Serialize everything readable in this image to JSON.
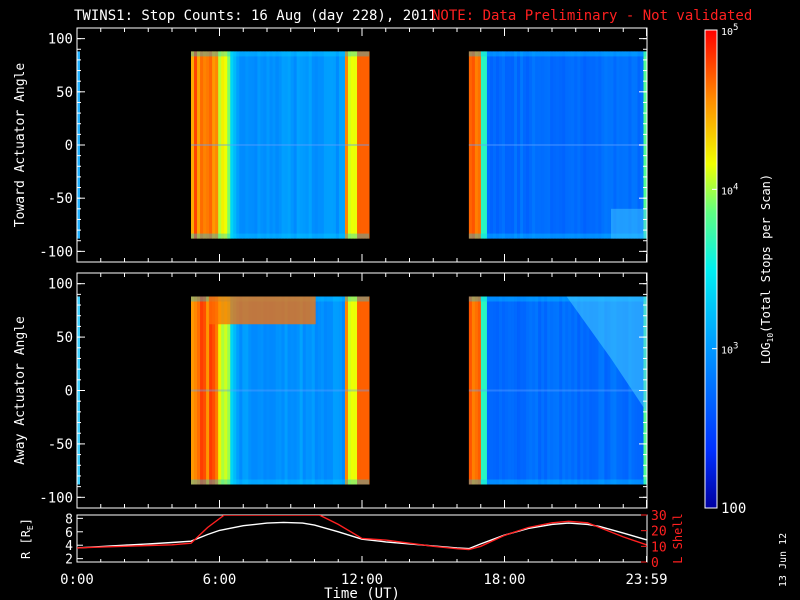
{
  "title": "TWINS1: Stop Counts: 16 Aug (day 228), 2011",
  "note": "NOTE: Data Preliminary - Not validated",
  "date_stamp": "13 Jun 12",
  "colors": {
    "background": "#000000",
    "note": "#ff2020",
    "axis": "#ffffff",
    "lshell": "#ff2020"
  },
  "chart_data": [
    {
      "type": "heatmap",
      "title": "",
      "ylabel": "Toward Actuator Angle",
      "ylim": [
        -110,
        110
      ],
      "yticks": [
        -100,
        -50,
        0,
        50,
        100
      ],
      "x_range_hours": [
        0,
        24
      ],
      "y_data_range": [
        -88,
        88
      ],
      "data_intervals_hours": [
        [
          4.8,
          12.3
        ],
        [
          16.5,
          23.98
        ]
      ],
      "scale": "log",
      "value_range": [
        100,
        100000
      ]
    },
    {
      "type": "heatmap",
      "title": "",
      "ylabel": "Away Actuator Angle",
      "ylim": [
        -110,
        110
      ],
      "yticks": [
        -100,
        -50,
        0,
        50,
        100
      ],
      "x_range_hours": [
        0,
        24
      ],
      "y_data_range": [
        -88,
        88
      ],
      "data_intervals_hours": [
        [
          4.8,
          12.3
        ],
        [
          16.5,
          23.98
        ]
      ],
      "scale": "log",
      "value_range": [
        100,
        100000
      ]
    },
    {
      "type": "line",
      "xlabel": "Time (UT)",
      "xticks": [
        "0:00",
        "6:00",
        "12:00",
        "18:00",
        "23:59"
      ],
      "xtick_hours": [
        0,
        6,
        12,
        18,
        23.98
      ],
      "ylabel_left": "R [RE]",
      "ylabel_left_parts": [
        "R [R",
        "E",
        "]"
      ],
      "ylabel_right": "L Shell",
      "ylim_left": [
        1.5,
        8.5
      ],
      "yticks_left": [
        2,
        4,
        6,
        8
      ],
      "ylim_right": [
        0,
        30
      ],
      "yticks_right": [
        0,
        10,
        20,
        30
      ],
      "series": [
        {
          "axis": "left",
          "color": "#ffffff",
          "x": [
            0,
            1,
            2,
            3,
            4,
            4.8,
            5.5,
            6,
            7,
            8,
            8.7,
            9.5,
            10,
            11,
            12,
            13,
            14,
            15,
            16,
            16.5,
            17,
            18,
            19,
            20,
            20.7,
            21.5,
            22,
            23,
            23.98
          ],
          "y": [
            3.6,
            3.8,
            4.0,
            4.2,
            4.4,
            4.6,
            5.6,
            6.2,
            6.9,
            7.3,
            7.4,
            7.3,
            7.0,
            6.0,
            4.9,
            4.5,
            4.2,
            3.9,
            3.6,
            3.5,
            4.2,
            5.5,
            6.5,
            7.1,
            7.3,
            7.1,
            6.8,
            5.8,
            4.8
          ]
        },
        {
          "axis": "right",
          "color": "#ff2020",
          "x": [
            0,
            1,
            2,
            3,
            4,
            4.8,
            5.5,
            6.2,
            6.5,
            10.2,
            11,
            12,
            13,
            14,
            15,
            16,
            16.5,
            17,
            18,
            19,
            20,
            20.7,
            21.5,
            22,
            23,
            23.98
          ],
          "y": [
            9,
            9.5,
            10,
            10.5,
            11,
            12,
            22,
            30,
            30,
            30,
            24,
            15,
            14,
            12,
            10,
            8.5,
            8,
            10,
            17,
            22,
            25,
            26,
            25,
            22,
            16,
            11
          ]
        }
      ]
    }
  ],
  "colorbar": {
    "label_parts": [
      "LOG",
      "10",
      "(Total Stops per Scan)"
    ],
    "ticks": [
      {
        "base": "10",
        "exp": "5",
        "value": 100000
      },
      {
        "base": "10",
        "exp": "4",
        "value": 10000
      },
      {
        "base": "10",
        "exp": "3",
        "value": 1000
      },
      {
        "base": "100",
        "exp": "",
        "value": 100
      }
    ],
    "range": [
      100,
      100000
    ],
    "scale": "log"
  }
}
